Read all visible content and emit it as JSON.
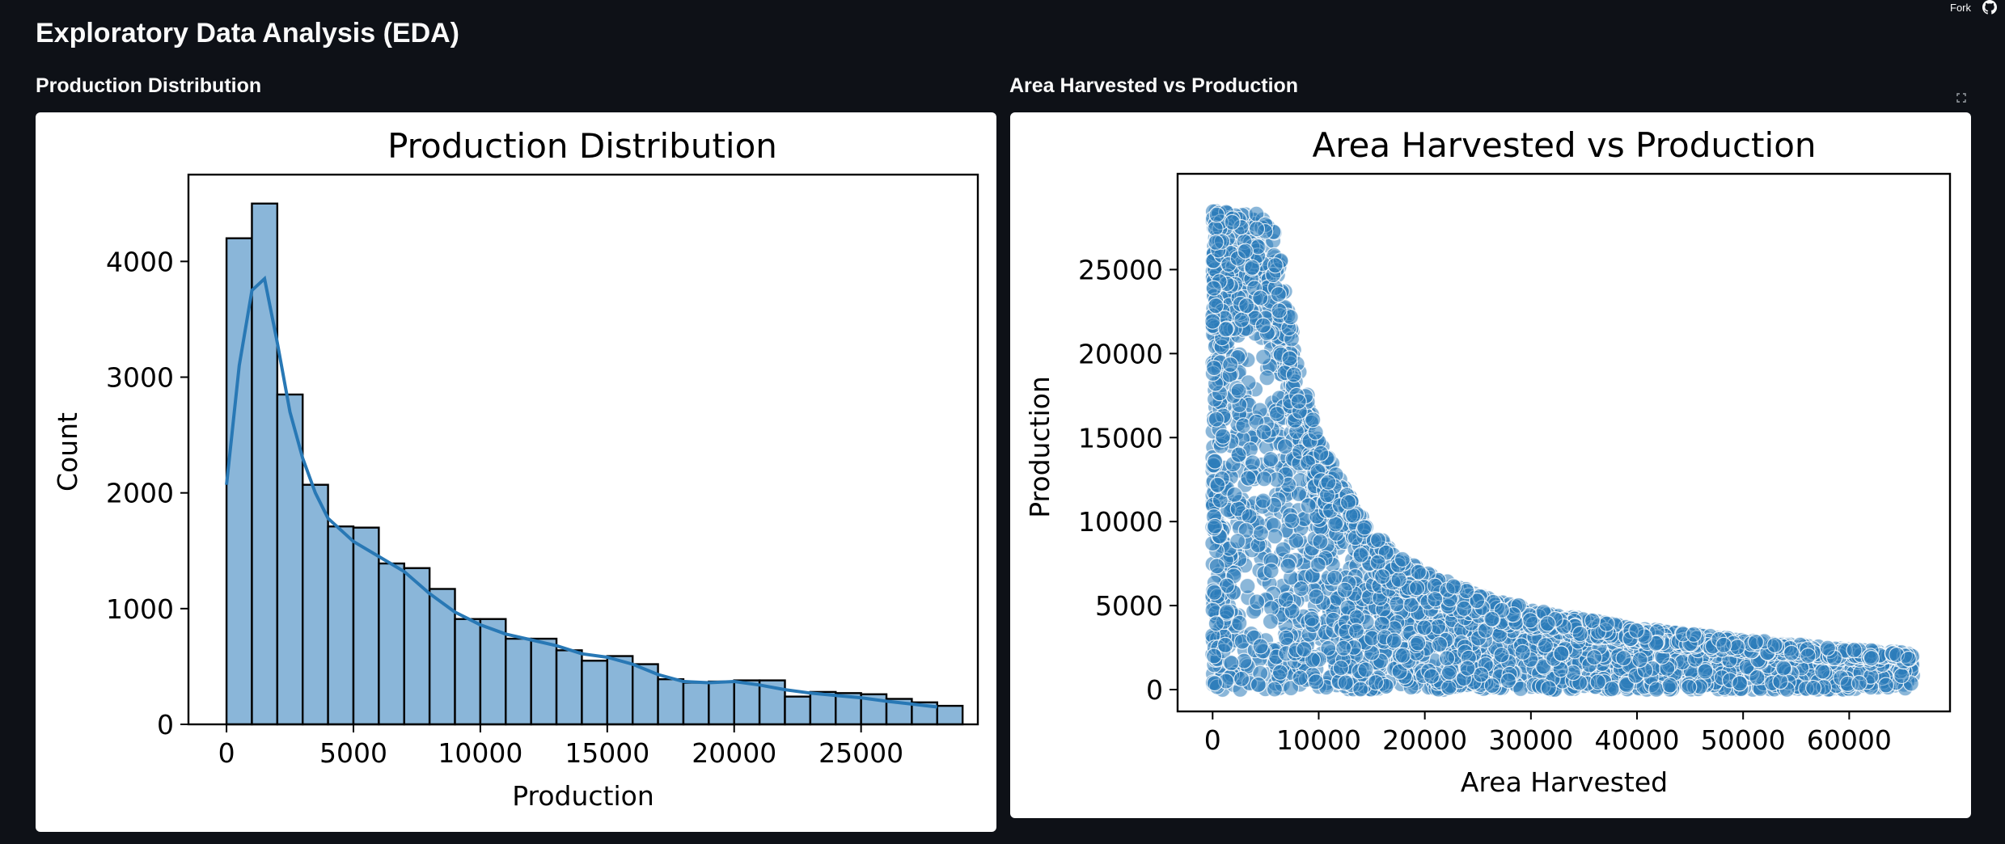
{
  "header": {
    "fork_label": "Fork",
    "github_icon": "github-icon",
    "page_title": "Exploratory Data Analysis (EDA)"
  },
  "sections": {
    "left_title": "Production Distribution",
    "right_title": "Area Harvested vs Production"
  },
  "fullscreen_icon": "expand-icon",
  "colors": {
    "background": "#0e1117",
    "bar_fill": "#8ab6d9",
    "kde_line": "#2878b5",
    "point_fill": "#2c7bba"
  },
  "chart_data": [
    {
      "type": "bar",
      "title": "Production Distribution",
      "xlabel": "Production",
      "ylabel": "Count",
      "bin_width": 1000,
      "bin_start": 0,
      "values": [
        4200,
        4500,
        2850,
        2070,
        1710,
        1700,
        1390,
        1350,
        1170,
        910,
        910,
        740,
        740,
        640,
        550,
        590,
        520,
        390,
        360,
        370,
        380,
        380,
        240,
        280,
        270,
        260,
        220,
        190,
        160
      ],
      "kde": {
        "x": [
          0,
          500,
          1000,
          1500,
          2000,
          2500,
          3000,
          3500,
          4000,
          5000,
          6000,
          7000,
          8000,
          9000,
          10000,
          11000,
          12000,
          13000,
          14000,
          15000,
          16000,
          17000,
          18000,
          19000,
          20000,
          21000,
          22000,
          23000,
          24000,
          25000,
          26000,
          27000,
          28000
        ],
        "y": [
          2070,
          3100,
          3750,
          3850,
          3300,
          2700,
          2300,
          2000,
          1780,
          1580,
          1450,
          1320,
          1130,
          970,
          860,
          780,
          730,
          680,
          610,
          580,
          520,
          430,
          370,
          360,
          370,
          340,
          300,
          270,
          250,
          230,
          200,
          175,
          150
        ]
      },
      "xlim": [
        -1500,
        29600
      ],
      "ylim": [
        0,
        4750
      ],
      "xticks": [
        0,
        5000,
        10000,
        15000,
        20000,
        25000
      ],
      "xtick_labels": [
        "0",
        "5000",
        "10000",
        "15000",
        "20000",
        "25000"
      ],
      "yticks": [
        0,
        1000,
        2000,
        3000,
        4000
      ],
      "ytick_labels": [
        "0",
        "1000",
        "2000",
        "3000",
        "4000"
      ]
    },
    {
      "type": "scatter",
      "title": "Area Harvested vs Production",
      "xlabel": "Area Harvested",
      "ylabel": "Production",
      "xlim": [
        -3300,
        69500
      ],
      "ylim": [
        -1300,
        30700
      ],
      "xticks": [
        0,
        10000,
        20000,
        30000,
        40000,
        50000,
        60000
      ],
      "xtick_labels": [
        "0",
        "10000",
        "20000",
        "30000",
        "40000",
        "50000",
        "60000"
      ],
      "yticks": [
        0,
        5000,
        10000,
        15000,
        20000,
        25000
      ],
      "ytick_labels": [
        "0",
        "5000",
        "10000",
        "15000",
        "20000",
        "25000"
      ],
      "density": "points fill the region below an upper envelope that falls from about 28500 (area 0-5000) to about 2200 (area 66000); production ranges from 0 to the envelope, area from 0 to about 66000",
      "envelope": {
        "x": [
          0,
          5000,
          6000,
          8000,
          10000,
          12500,
          15000,
          17500,
          20000,
          25000,
          30000,
          35000,
          40000,
          45000,
          50000,
          55000,
          60000,
          66000
        ],
        "y": [
          28500,
          28500,
          27000,
          20000,
          15000,
          12000,
          9500,
          8000,
          7000,
          5700,
          4800,
          4200,
          3700,
          3300,
          3000,
          2700,
          2400,
          2200
        ]
      }
    }
  ]
}
